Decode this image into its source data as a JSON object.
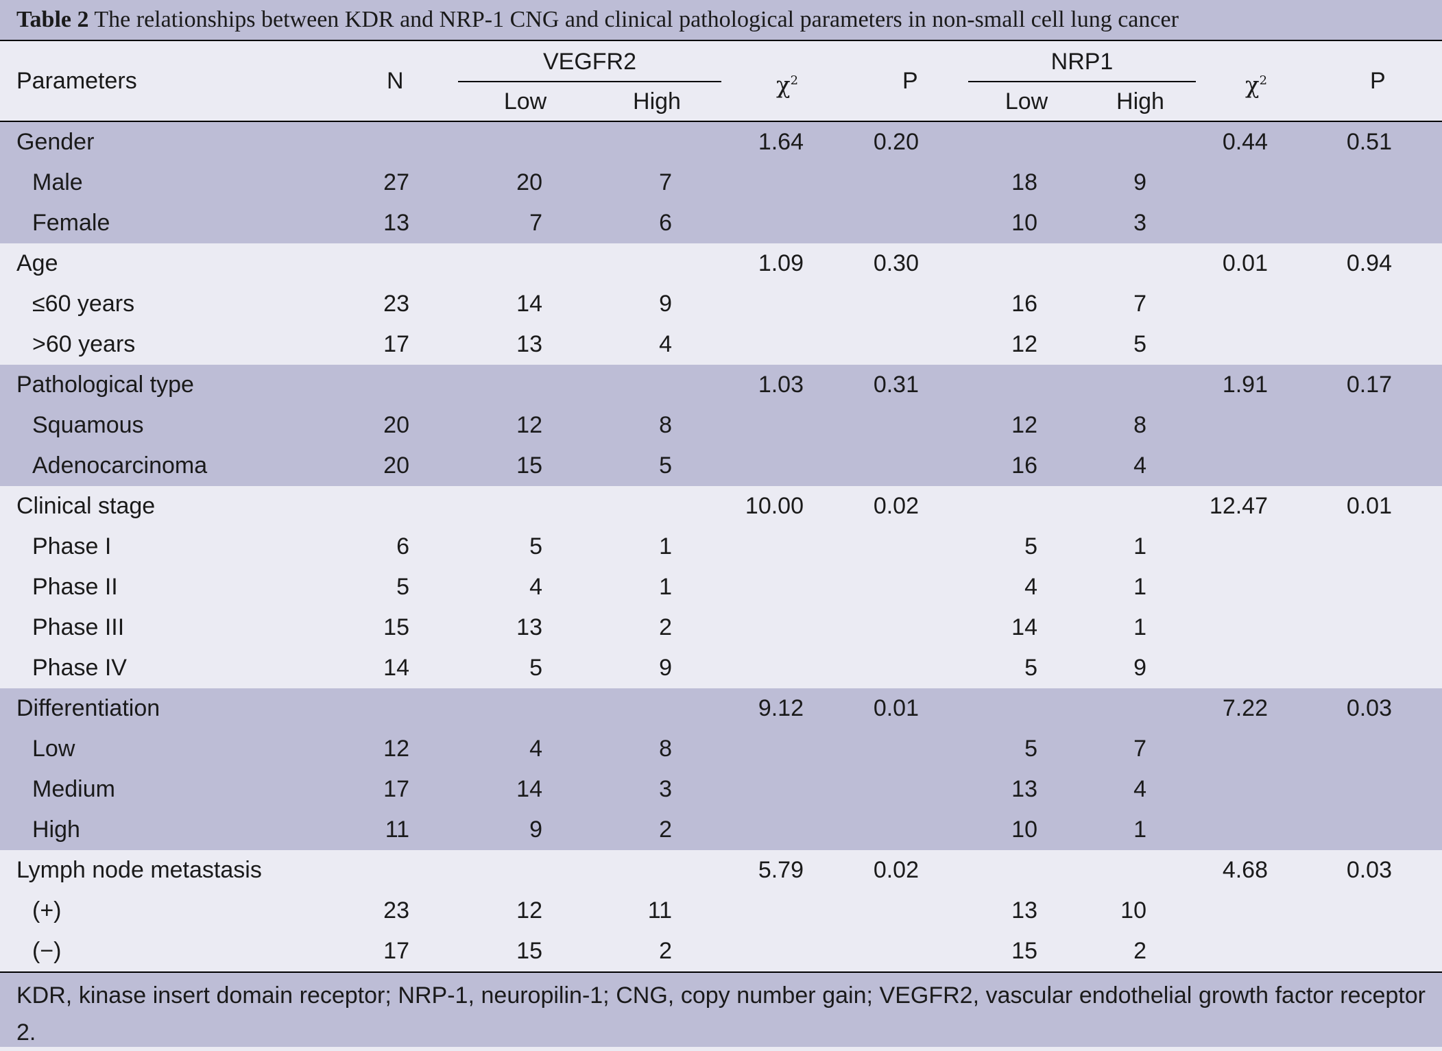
{
  "title": {
    "label": "Table 2",
    "text": "The relationships between KDR and NRP-1 CNG and clinical pathological parameters in non-small cell lung cancer"
  },
  "header": {
    "parameters": "Parameters",
    "n": "N",
    "group1": "VEGFR2",
    "group2": "NRP1",
    "low": "Low",
    "high": "High",
    "chi_base": "χ",
    "chi_sup": "2",
    "p": "P"
  },
  "groups": [
    {
      "category": "Gender",
      "chi1": "1.64",
      "p1": "0.20",
      "chi2": "0.44",
      "p2": "0.51",
      "rows": [
        {
          "label": "Male",
          "n": "27",
          "v_low": "20",
          "v_high": "7",
          "n_low": "18",
          "n_high": "9"
        },
        {
          "label": "Female",
          "n": "13",
          "v_low": "7",
          "v_high": "6",
          "n_low": "10",
          "n_high": "3"
        }
      ]
    },
    {
      "category": "Age",
      "chi1": "1.09",
      "p1": "0.30",
      "chi2": "0.01",
      "p2": "0.94",
      "rows": [
        {
          "label": "≤60 years",
          "n": "23",
          "v_low": "14",
          "v_high": "9",
          "n_low": "16",
          "n_high": "7"
        },
        {
          "label": ">60 years",
          "n": "17",
          "v_low": "13",
          "v_high": "4",
          "n_low": "12",
          "n_high": "5"
        }
      ]
    },
    {
      "category": "Pathological type",
      "chi1": "1.03",
      "p1": "0.31",
      "chi2": "1.91",
      "p2": "0.17",
      "rows": [
        {
          "label": "Squamous",
          "n": "20",
          "v_low": "12",
          "v_high": "8",
          "n_low": "12",
          "n_high": "8"
        },
        {
          "label": "Adenocarcinoma",
          "n": "20",
          "v_low": "15",
          "v_high": "5",
          "n_low": "16",
          "n_high": "4"
        }
      ]
    },
    {
      "category": "Clinical stage",
      "chi1": "10.00",
      "p1": "0.02",
      "chi2": "12.47",
      "p2": "0.01",
      "rows": [
        {
          "label": "Phase I",
          "n": "6",
          "v_low": "5",
          "v_high": "1",
          "n_low": "5",
          "n_high": "1"
        },
        {
          "label": "Phase II",
          "n": "5",
          "v_low": "4",
          "v_high": "1",
          "n_low": "4",
          "n_high": "1"
        },
        {
          "label": "Phase III",
          "n": "15",
          "v_low": "13",
          "v_high": "2",
          "n_low": "14",
          "n_high": "1"
        },
        {
          "label": "Phase IV",
          "n": "14",
          "v_low": "5",
          "v_high": "9",
          "n_low": "5",
          "n_high": "9"
        }
      ]
    },
    {
      "category": "Differentiation",
      "chi1": "9.12",
      "p1": "0.01",
      "chi2": "7.22",
      "p2": "0.03",
      "rows": [
        {
          "label": "Low",
          "n": "12",
          "v_low": "4",
          "v_high": "8",
          "n_low": "5",
          "n_high": "7"
        },
        {
          "label": "Medium",
          "n": "17",
          "v_low": "14",
          "v_high": "3",
          "n_low": "13",
          "n_high": "4"
        },
        {
          "label": "High",
          "n": "11",
          "v_low": "9",
          "v_high": "2",
          "n_low": "10",
          "n_high": "1"
        }
      ]
    },
    {
      "category": "Lymph node metastasis",
      "chi1": "5.79",
      "p1": "0.02",
      "chi2": "4.68",
      "p2": "0.03",
      "rows": [
        {
          "label": "(+)",
          "n": "23",
          "v_low": "12",
          "v_high": "11",
          "n_low": "13",
          "n_high": "10"
        },
        {
          "label": "(−)",
          "n": "17",
          "v_low": "15",
          "v_high": "2",
          "n_low": "15",
          "n_high": "2"
        }
      ]
    }
  ],
  "footnote": "KDR, kinase insert domain receptor; NRP-1, neuropilin-1; CNG, copy number gain; VEGFR2, vascular endothelial growth factor receptor 2."
}
